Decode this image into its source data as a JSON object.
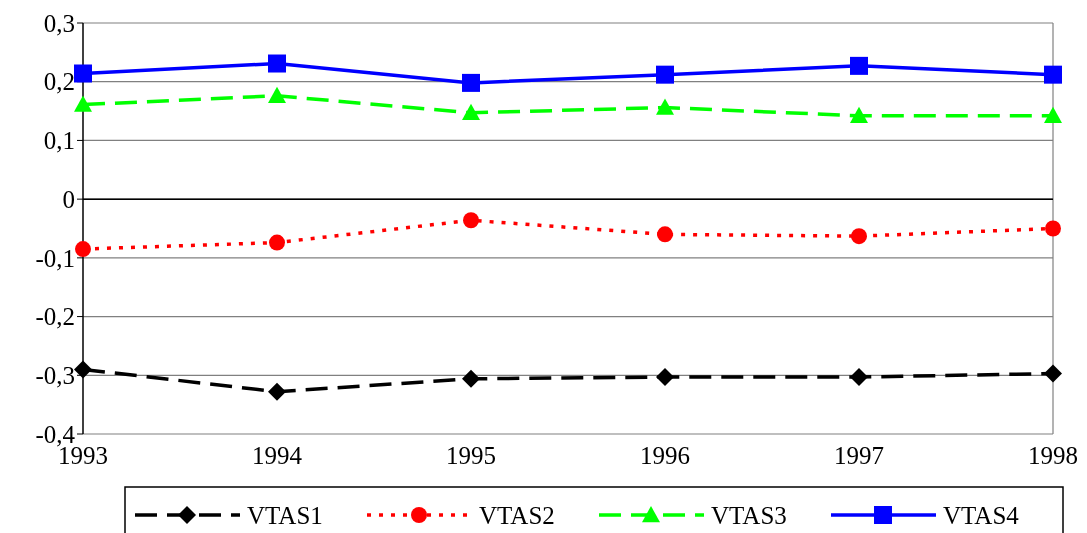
{
  "chart_data": {
    "type": "line",
    "categories": [
      "1993",
      "1994",
      "1995",
      "1996",
      "1997",
      "1998"
    ],
    "series": [
      {
        "name": "VTAS1",
        "color": "#000000",
        "marker": "diamond",
        "line_style": "dashed",
        "values": [
          -0.29,
          -0.328,
          -0.306,
          -0.303,
          -0.303,
          -0.297
        ]
      },
      {
        "name": "VTAS2",
        "color": "#ff0000",
        "marker": "circle",
        "line_style": "dotted",
        "values": [
          -0.085,
          -0.074,
          -0.036,
          -0.06,
          -0.063,
          -0.05
        ]
      },
      {
        "name": "VTAS3",
        "color": "#00ff00",
        "marker": "triangle",
        "line_style": "dashed",
        "values": [
          0.161,
          0.176,
          0.147,
          0.156,
          0.142,
          0.142
        ]
      },
      {
        "name": "VTAS4",
        "color": "#0000ff",
        "marker": "square",
        "line_style": "solid",
        "values": [
          0.214,
          0.231,
          0.198,
          0.212,
          0.227,
          0.212
        ]
      }
    ],
    "ylim": [
      -0.4,
      0.3
    ],
    "yticks": [
      {
        "value": -0.4,
        "label": "-0,4"
      },
      {
        "value": -0.3,
        "label": "-0,3"
      },
      {
        "value": -0.2,
        "label": "-0,2"
      },
      {
        "value": -0.1,
        "label": "-0,1"
      },
      {
        "value": 0,
        "label": "0"
      },
      {
        "value": 0.1,
        "label": "0,1"
      },
      {
        "value": 0.2,
        "label": "0,2"
      },
      {
        "value": 0.3,
        "label": "0,3"
      }
    ],
    "grid": "y",
    "legend": "bottom"
  }
}
